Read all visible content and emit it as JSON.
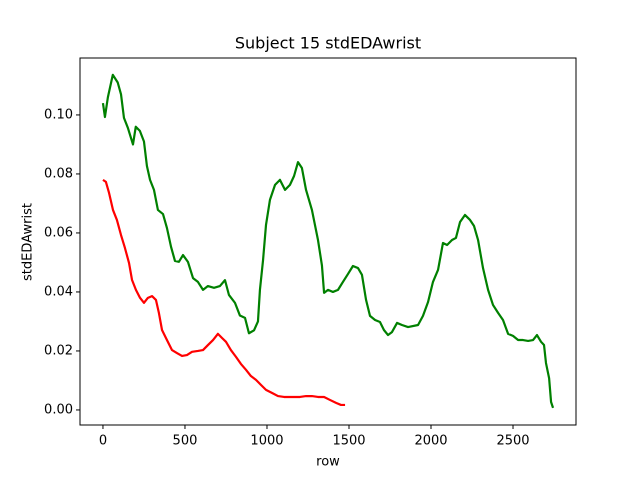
{
  "chart_data": {
    "type": "line",
    "title": "Subject 15 stdEDAwrist",
    "x_label": "row",
    "y_label": "stdEDAwrist",
    "xlim": [
      -140,
      2884
    ],
    "ylim": [
      -0.0051,
      0.1193
    ],
    "xticks": [
      0,
      500,
      1000,
      1500,
      2000,
      2500
    ],
    "yticks": [
      {
        "value": 0,
        "label": "0.00"
      },
      {
        "value": 0.02,
        "label": "0.02"
      },
      {
        "value": 0.04,
        "label": "0.04"
      },
      {
        "value": 0.06,
        "label": "0.06"
      },
      {
        "value": 0.08,
        "label": "0.08"
      },
      {
        "value": 0.1,
        "label": "0.10"
      }
    ],
    "series": [
      {
        "color": "#008000",
        "x": [
          0,
          12,
          30,
          60,
          90,
          110,
          128,
          152,
          183,
          200,
          225,
          250,
          268,
          287,
          311,
          335,
          366,
          390,
          415,
          439,
          463,
          488,
          518,
          549,
          579,
          610,
          640,
          677,
          713,
          744,
          768,
          805,
          835,
          866,
          890,
          921,
          945,
          957,
          976,
          994,
          1018,
          1049,
          1079,
          1110,
          1140,
          1165,
          1189,
          1213,
          1238,
          1274,
          1311,
          1335,
          1348,
          1372,
          1402,
          1433,
          1463,
          1494,
          1524,
          1555,
          1579,
          1604,
          1628,
          1659,
          1689,
          1713,
          1738,
          1762,
          1793,
          1823,
          1860,
          1921,
          1951,
          1982,
          2012,
          2043,
          2073,
          2098,
          2128,
          2152,
          2177,
          2207,
          2238,
          2262,
          2287,
          2317,
          2348,
          2378,
          2409,
          2439,
          2470,
          2500,
          2531,
          2561,
          2592,
          2622,
          2646,
          2671,
          2689,
          2701,
          2720,
          2732,
          2744
        ],
        "values": [
          0.104,
          0.0993,
          0.106,
          0.1136,
          0.111,
          0.107,
          0.099,
          0.0956,
          0.09,
          0.096,
          0.0946,
          0.091,
          0.0827,
          0.078,
          0.0746,
          0.0678,
          0.0664,
          0.0617,
          0.0553,
          0.0505,
          0.0502,
          0.0525,
          0.0502,
          0.0447,
          0.0434,
          0.0407,
          0.042,
          0.0414,
          0.042,
          0.044,
          0.039,
          0.0363,
          0.032,
          0.0312,
          0.026,
          0.027,
          0.03,
          0.0407,
          0.0508,
          0.0627,
          0.0712,
          0.0763,
          0.078,
          0.0746,
          0.0763,
          0.0793,
          0.084,
          0.082,
          0.0746,
          0.0678,
          0.0576,
          0.049,
          0.0397,
          0.0407,
          0.04,
          0.0407,
          0.0434,
          0.0461,
          0.0488,
          0.0481,
          0.0458,
          0.0373,
          0.0319,
          0.0305,
          0.0298,
          0.0271,
          0.0254,
          0.0264,
          0.0295,
          0.0288,
          0.0281,
          0.0288,
          0.0319,
          0.0366,
          0.0434,
          0.0475,
          0.0566,
          0.0559,
          0.0576,
          0.0583,
          0.0637,
          0.0661,
          0.0644,
          0.0624,
          0.0576,
          0.0481,
          0.0407,
          0.0356,
          0.0329,
          0.0305,
          0.0258,
          0.0251,
          0.0237,
          0.0237,
          0.0234,
          0.0237,
          0.0254,
          0.0231,
          0.022,
          0.0159,
          0.0108,
          0.0027,
          0.0007
        ]
      },
      {
        "color": "#ff0000",
        "x": [
          0,
          18,
          37,
          61,
          85,
          110,
          134,
          159,
          177,
          201,
          226,
          250,
          274,
          299,
          323,
          341,
          360,
          390,
          421,
          451,
          482,
          512,
          543,
          579,
          610,
          640,
          671,
          701,
          726,
          750,
          780,
          811,
          841,
          872,
          902,
          933,
          963,
          994,
          1030,
          1067,
          1104,
          1152,
          1201,
          1238,
          1274,
          1311,
          1348,
          1384,
          1421,
          1451,
          1476
        ],
        "values": [
          0.078,
          0.0773,
          0.0736,
          0.0678,
          0.0644,
          0.0593,
          0.0549,
          0.0498,
          0.0441,
          0.0407,
          0.038,
          0.0363,
          0.038,
          0.0386,
          0.0373,
          0.0329,
          0.0271,
          0.0237,
          0.0203,
          0.0193,
          0.0183,
          0.0186,
          0.0197,
          0.02,
          0.0203,
          0.022,
          0.0237,
          0.0258,
          0.0244,
          0.0231,
          0.0203,
          0.018,
          0.0156,
          0.0136,
          0.0115,
          0.0102,
          0.0085,
          0.0068,
          0.0058,
          0.0047,
          0.0044,
          0.0044,
          0.0044,
          0.0047,
          0.0047,
          0.0044,
          0.0044,
          0.0034,
          0.0024,
          0.0017,
          0.0017
        ]
      }
    ]
  }
}
